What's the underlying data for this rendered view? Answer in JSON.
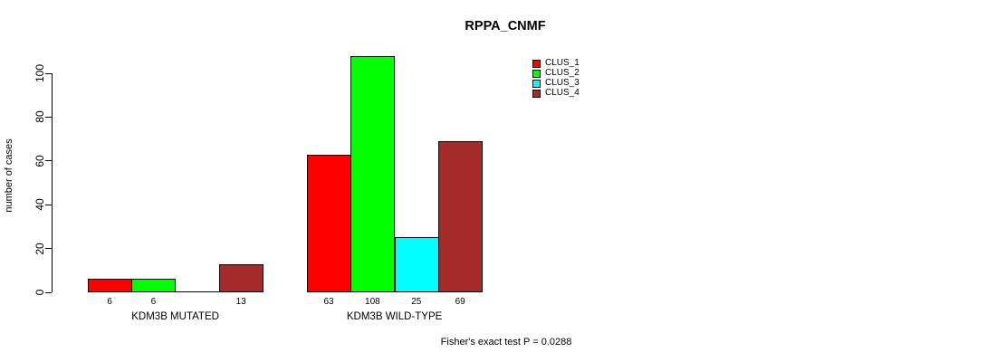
{
  "title": "RPPA_CNMF",
  "y_axis_label": "number of cases",
  "footnote": "Fisher's exact test P = 0.0288",
  "legend": {
    "items": [
      {
        "label": "CLUS_1",
        "color": "#FF0000"
      },
      {
        "label": "CLUS_2",
        "color": "#00FF00"
      },
      {
        "label": "CLUS_3",
        "color": "#00FFFF"
      },
      {
        "label": "CLUS_4",
        "color": "#A52A2A"
      }
    ]
  },
  "chart_data": {
    "type": "bar",
    "title": "RPPA_CNMF",
    "xlabel": "",
    "ylabel": "number of cases",
    "ylim": [
      0,
      110
    ],
    "yticks": [
      0,
      20,
      40,
      60,
      80,
      100
    ],
    "grid": false,
    "legend_position": "inside-top-right",
    "categories": [
      "KDM3B MUTATED",
      "KDM3B WILD-TYPE"
    ],
    "series": [
      {
        "name": "CLUS_1",
        "color": "#FF0000",
        "values": [
          6,
          63
        ]
      },
      {
        "name": "CLUS_2",
        "color": "#00FF00",
        "values": [
          6,
          108
        ]
      },
      {
        "name": "CLUS_3",
        "color": "#00FFFF",
        "values": [
          0,
          25
        ]
      },
      {
        "name": "CLUS_4",
        "color": "#A52A2A",
        "values": [
          13,
          69
        ]
      }
    ],
    "bar_value_labels": [
      [
        "6",
        "6",
        "",
        "13"
      ],
      [
        "63",
        "108",
        "25",
        "69"
      ]
    ],
    "annotation": "Fisher's exact test P = 0.0288"
  }
}
